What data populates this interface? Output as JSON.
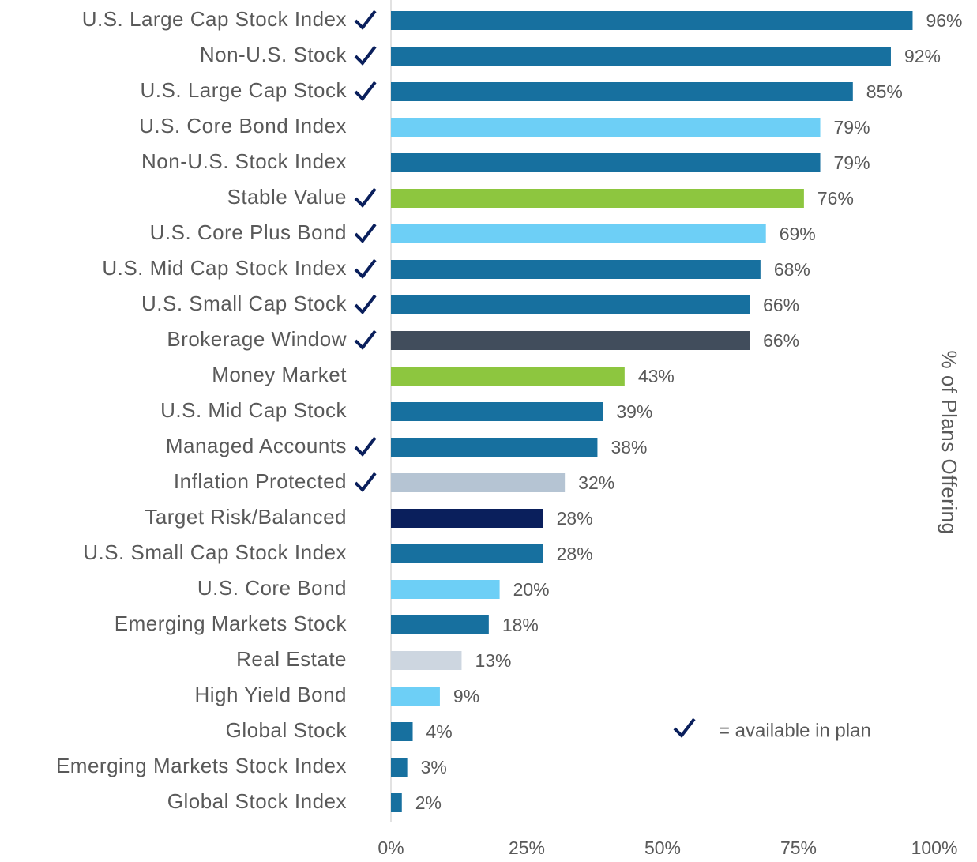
{
  "chart_data": {
    "type": "bar",
    "orientation": "horizontal",
    "categories": [
      "U.S. Large Cap Stock Index",
      "Non-U.S. Stock",
      "U.S. Large Cap Stock",
      "U.S. Core Bond Index",
      "Non-U.S. Stock Index",
      "Stable Value",
      "U.S. Core Plus Bond",
      "U.S. Mid Cap Stock Index",
      "U.S. Small Cap Stock",
      "Brokerage Window",
      "Money Market",
      "U.S. Mid Cap Stock",
      "Managed Accounts",
      "Inflation Protected",
      "Target Risk/Balanced",
      "U.S. Small Cap Stock Index",
      "U.S. Core Bond",
      "Emerging Markets Stock",
      "Real Estate",
      "High Yield Bond",
      "Global Stock",
      "Emerging Markets Stock Index",
      "Global Stock Index"
    ],
    "values": [
      96,
      92,
      85,
      79,
      79,
      76,
      69,
      68,
      66,
      66,
      43,
      39,
      38,
      32,
      28,
      28,
      20,
      18,
      13,
      9,
      4,
      3,
      2
    ],
    "value_labels": [
      "96%",
      "92%",
      "85%",
      "79%",
      "79%",
      "76%",
      "69%",
      "68%",
      "66%",
      "66%",
      "43%",
      "39%",
      "38%",
      "32%",
      "28%",
      "28%",
      "20%",
      "18%",
      "13%",
      "9%",
      "4%",
      "3%",
      "2%"
    ],
    "colors": [
      "#17709f",
      "#17709f",
      "#17709f",
      "#6dcff6",
      "#17709f",
      "#8dc63f",
      "#6dcff6",
      "#17709f",
      "#17709f",
      "#414d5c",
      "#8dc63f",
      "#17709f",
      "#17709f",
      "#b5c4d3",
      "#0a1f5c",
      "#17709f",
      "#6dcff6",
      "#17709f",
      "#cdd6e0",
      "#6dcff6",
      "#17709f",
      "#17709f",
      "#17709f"
    ],
    "available": [
      true,
      true,
      true,
      false,
      false,
      true,
      true,
      true,
      true,
      true,
      false,
      false,
      true,
      true,
      false,
      false,
      false,
      false,
      false,
      false,
      false,
      false,
      false
    ],
    "check_color": "#0a1f5c",
    "legend_text": "= available in plan",
    "xlabel": "% of Plans Offering",
    "xlim": [
      0,
      100
    ],
    "xticks": [
      {
        "value": 0,
        "label": "0%"
      },
      {
        "value": 25,
        "label": "25%"
      },
      {
        "value": 50,
        "label": "50%"
      },
      {
        "value": 75,
        "label": "75%"
      },
      {
        "value": 100,
        "label": "100%"
      }
    ]
  }
}
